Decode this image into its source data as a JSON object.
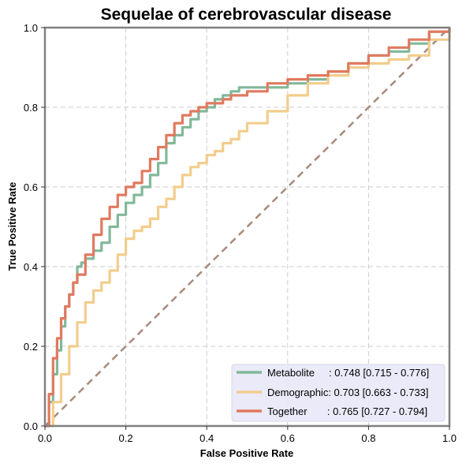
{
  "chart_data": {
    "type": "line",
    "title": "Sequelae of cerebrovascular disease",
    "xlabel": "False Positive Rate",
    "ylabel": "True Positive Rate",
    "xlim": [
      0,
      1
    ],
    "ylim": [
      0,
      1
    ],
    "xticks": [
      "0.0",
      "0.2",
      "0.4",
      "0.6",
      "0.8",
      "1.0"
    ],
    "yticks": [
      "0.0",
      "0.2",
      "0.4",
      "0.6",
      "0.8",
      "1.0"
    ],
    "grid": true,
    "legend_position": "lower-right",
    "diagonal": {
      "x": [
        0,
        1
      ],
      "y": [
        0,
        1
      ],
      "color": "#a88a7a",
      "style": "dashed"
    },
    "series": [
      {
        "name": "Metabolite",
        "legend_label": "Metabolite     : 0.748 [0.715 - 0.776]",
        "color": "#82b89a",
        "x": [
          0,
          0.01,
          0.02,
          0.03,
          0.04,
          0.05,
          0.06,
          0.07,
          0.08,
          0.09,
          0.1,
          0.12,
          0.14,
          0.16,
          0.18,
          0.2,
          0.22,
          0.24,
          0.26,
          0.28,
          0.3,
          0.32,
          0.34,
          0.36,
          0.38,
          0.4,
          0.42,
          0.44,
          0.46,
          0.48,
          0.5,
          0.55,
          0.6,
          0.65,
          0.7,
          0.75,
          0.8,
          0.85,
          0.9,
          0.95,
          1.0
        ],
        "y": [
          0,
          0.06,
          0.13,
          0.19,
          0.25,
          0.3,
          0.33,
          0.36,
          0.4,
          0.41,
          0.42,
          0.44,
          0.46,
          0.5,
          0.53,
          0.56,
          0.58,
          0.6,
          0.63,
          0.66,
          0.71,
          0.73,
          0.75,
          0.77,
          0.79,
          0.8,
          0.82,
          0.83,
          0.84,
          0.85,
          0.85,
          0.85,
          0.86,
          0.87,
          0.89,
          0.91,
          0.93,
          0.94,
          0.96,
          0.99,
          1.0
        ]
      },
      {
        "name": "Demographic",
        "legend_label": "Demographic: 0.703 [0.663 - 0.733]",
        "color": "#f2cd8c",
        "x": [
          0,
          0.02,
          0.04,
          0.06,
          0.08,
          0.1,
          0.12,
          0.14,
          0.16,
          0.18,
          0.2,
          0.22,
          0.24,
          0.26,
          0.28,
          0.3,
          0.32,
          0.34,
          0.36,
          0.38,
          0.4,
          0.42,
          0.44,
          0.46,
          0.48,
          0.5,
          0.55,
          0.6,
          0.65,
          0.7,
          0.75,
          0.8,
          0.85,
          0.9,
          0.95,
          1.0
        ],
        "y": [
          0,
          0.06,
          0.13,
          0.2,
          0.26,
          0.31,
          0.34,
          0.36,
          0.39,
          0.43,
          0.47,
          0.49,
          0.5,
          0.52,
          0.55,
          0.57,
          0.6,
          0.63,
          0.65,
          0.66,
          0.68,
          0.69,
          0.71,
          0.72,
          0.74,
          0.76,
          0.79,
          0.83,
          0.86,
          0.88,
          0.9,
          0.91,
          0.92,
          0.93,
          0.97,
          1.0
        ]
      },
      {
        "name": "Together",
        "legend_label": "Together       : 0.765 [0.727 - 0.794]",
        "color": "#e07a5f",
        "x": [
          0,
          0.01,
          0.02,
          0.03,
          0.04,
          0.05,
          0.06,
          0.07,
          0.08,
          0.1,
          0.12,
          0.14,
          0.16,
          0.18,
          0.2,
          0.22,
          0.24,
          0.26,
          0.28,
          0.3,
          0.32,
          0.34,
          0.36,
          0.38,
          0.4,
          0.42,
          0.44,
          0.46,
          0.48,
          0.5,
          0.55,
          0.6,
          0.65,
          0.7,
          0.75,
          0.8,
          0.85,
          0.9,
          0.95,
          1.0
        ],
        "y": [
          0,
          0.08,
          0.17,
          0.22,
          0.27,
          0.3,
          0.33,
          0.36,
          0.38,
          0.43,
          0.48,
          0.52,
          0.55,
          0.58,
          0.6,
          0.61,
          0.64,
          0.67,
          0.7,
          0.73,
          0.76,
          0.78,
          0.79,
          0.8,
          0.81,
          0.81,
          0.82,
          0.83,
          0.83,
          0.84,
          0.86,
          0.87,
          0.88,
          0.89,
          0.91,
          0.93,
          0.95,
          0.97,
          0.99,
          1.0
        ]
      }
    ]
  }
}
